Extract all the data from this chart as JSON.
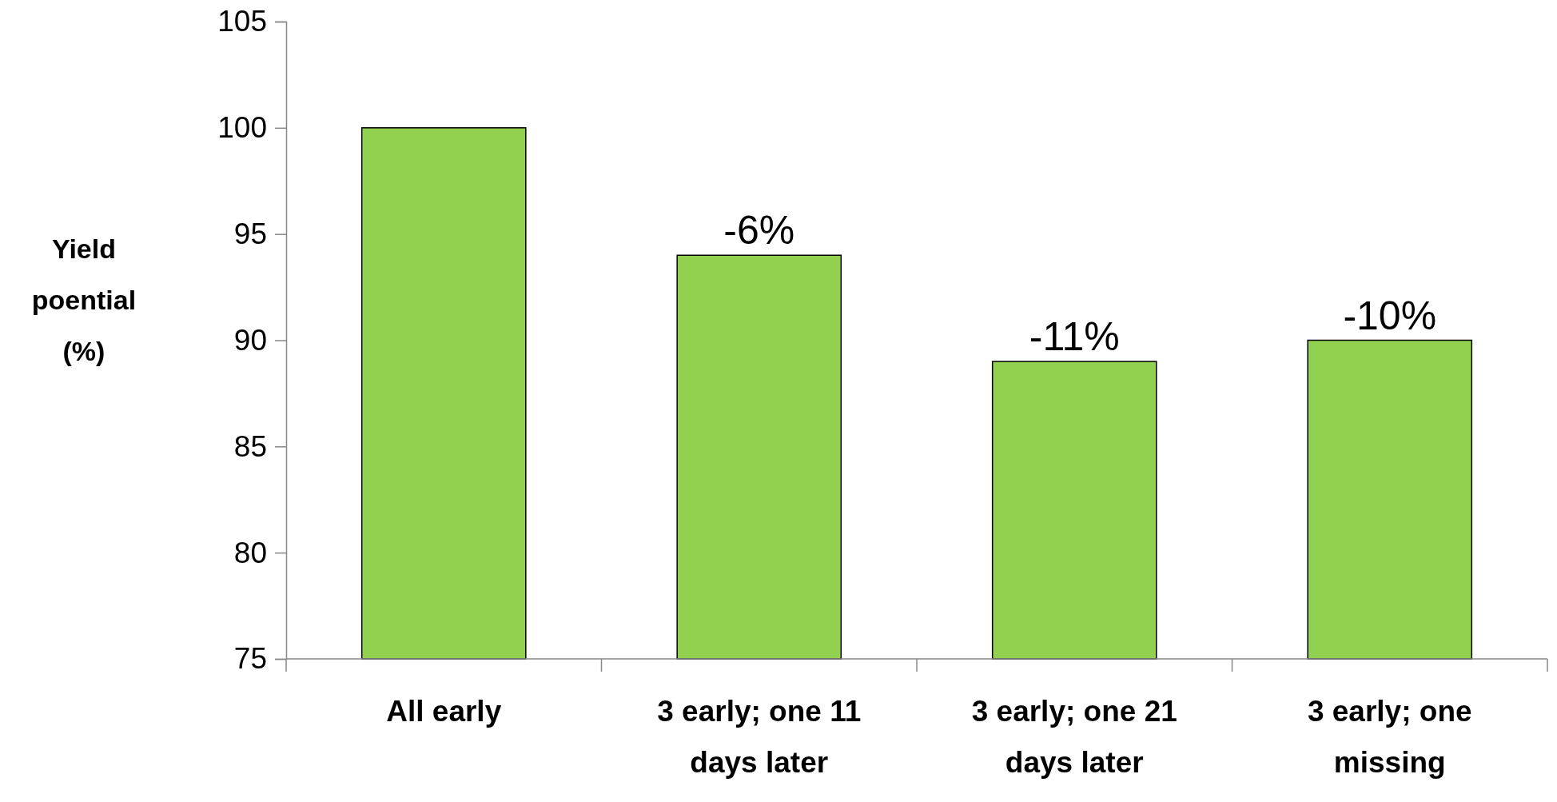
{
  "chart_data": {
    "type": "bar",
    "ylabel": "Yield poential (%)",
    "categories": [
      "All early",
      "3 early; one 11 days later",
      "3 early; one 21 days later",
      "3 early; one missing"
    ],
    "values": [
      100,
      94,
      89,
      90
    ],
    "annotations": [
      {
        "text": "-6%",
        "x": "3 early; one 11 days later",
        "y": 94
      },
      {
        "text": "-11%",
        "x": "3 early; one 21 days later",
        "y": 89
      },
      {
        "text": "-10%",
        "x": "3 early; one missing",
        "y": 90
      }
    ],
    "color": "#92d050",
    "ylim": [
      75,
      105
    ],
    "yticks": [
      75,
      80,
      85,
      90,
      95,
      100,
      105
    ],
    "grid": false
  }
}
